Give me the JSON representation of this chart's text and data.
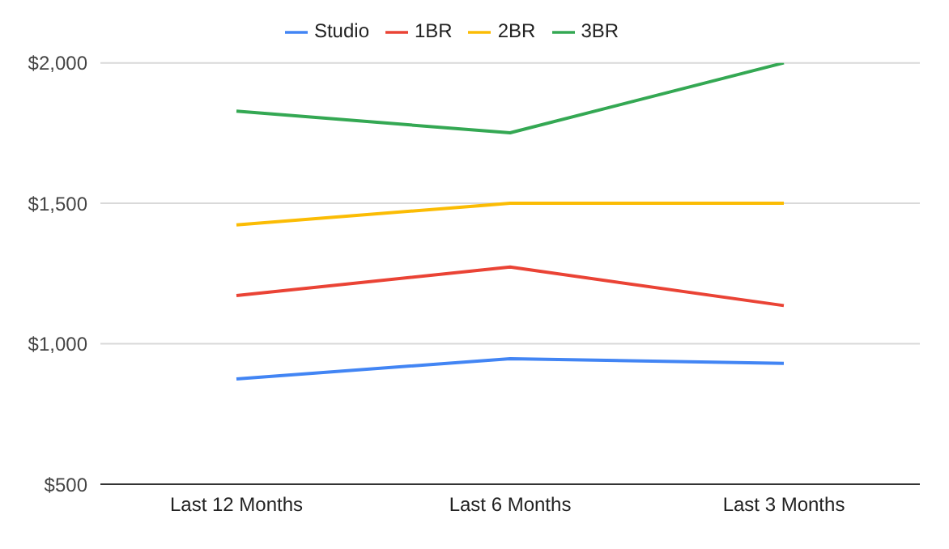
{
  "chart_data": {
    "type": "line",
    "categories": [
      "Last 12 Months",
      "Last 6 Months",
      "Last 3 Months"
    ],
    "series": [
      {
        "name": "Studio",
        "color": "#4285f4",
        "values": [
          875,
          947,
          930
        ]
      },
      {
        "name": "1BR",
        "color": "#ea4335",
        "values": [
          1172,
          1273,
          1136
        ]
      },
      {
        "name": "2BR",
        "color": "#fbbc04",
        "values": [
          1423,
          1500,
          1500
        ]
      },
      {
        "name": "3BR",
        "color": "#34a853",
        "values": [
          1828,
          1751,
          2000
        ]
      }
    ],
    "ylim": [
      500,
      2000
    ],
    "yticks": [
      {
        "value": 500,
        "label": "$500"
      },
      {
        "value": 1000,
        "label": "$1,000"
      },
      {
        "value": 1500,
        "label": "$1,500"
      },
      {
        "value": 2000,
        "label": "$2,000"
      }
    ],
    "grid": "y",
    "legend": "top",
    "marker": "none",
    "line_style": "solid"
  }
}
